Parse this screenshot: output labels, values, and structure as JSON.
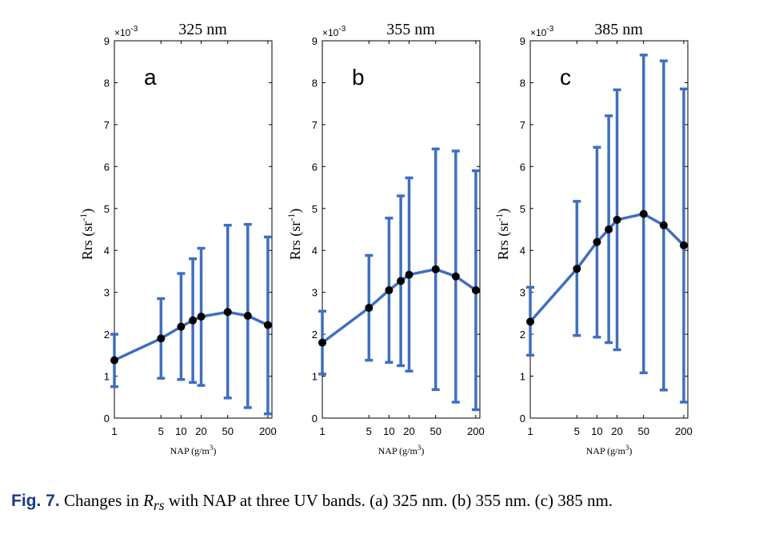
{
  "chart_data": [
    {
      "type": "line",
      "panel_letter": "a",
      "title": "325 nm",
      "exponent_label": "×10-3",
      "xlabel": "NAP (g/m3)",
      "ylabel": "Rrs (sr-1)",
      "xscale": "log",
      "xlim": [
        1,
        230
      ],
      "ylim": [
        0,
        9
      ],
      "x_ticks": [
        1,
        5,
        10,
        20,
        50,
        200
      ],
      "y_ticks": [
        0,
        1,
        2,
        3,
        4,
        5,
        6,
        7,
        8,
        9
      ],
      "x": [
        1,
        5,
        10,
        15,
        20,
        50,
        100,
        200
      ],
      "y": [
        1.38,
        1.9,
        2.18,
        2.33,
        2.42,
        2.53,
        2.44,
        2.22
      ],
      "error_low": [
        0.75,
        0.95,
        0.92,
        0.85,
        0.78,
        0.48,
        0.25,
        0.1
      ],
      "error_high": [
        2.0,
        2.85,
        3.45,
        3.8,
        4.05,
        4.6,
        4.62,
        4.32
      ]
    },
    {
      "type": "line",
      "panel_letter": "b",
      "title": "355 nm",
      "exponent_label": "×10-3",
      "xlabel": "NAP (g/m3)",
      "ylabel": "Rrs (sr-1)",
      "xscale": "log",
      "xlim": [
        1,
        230
      ],
      "ylim": [
        0,
        9
      ],
      "x_ticks": [
        1,
        5,
        10,
        20,
        50,
        200
      ],
      "y_ticks": [
        0,
        1,
        2,
        3,
        4,
        5,
        6,
        7,
        8,
        9
      ],
      "x": [
        1,
        5,
        10,
        15,
        20,
        50,
        100,
        200
      ],
      "y": [
        1.8,
        2.63,
        3.05,
        3.27,
        3.42,
        3.55,
        3.38,
        3.05
      ],
      "error_low": [
        1.05,
        1.38,
        1.33,
        1.25,
        1.12,
        0.68,
        0.38,
        0.2
      ],
      "error_high": [
        2.55,
        3.88,
        4.77,
        5.3,
        5.73,
        6.42,
        6.37,
        5.9
      ]
    },
    {
      "type": "line",
      "panel_letter": "c",
      "title": "385 nm",
      "exponent_label": "×10-3",
      "xlabel": "NAP (g/m3)",
      "ylabel": "Rrs (sr-1)",
      "xscale": "log",
      "xlim": [
        1,
        230
      ],
      "ylim": [
        0,
        9
      ],
      "x_ticks": [
        1,
        5,
        10,
        20,
        50,
        200
      ],
      "y_ticks": [
        0,
        1,
        2,
        3,
        4,
        5,
        6,
        7,
        8,
        9
      ],
      "x": [
        1,
        5,
        10,
        15,
        20,
        50,
        100,
        200
      ],
      "y": [
        2.3,
        3.56,
        4.2,
        4.5,
        4.73,
        4.87,
        4.6,
        4.12
      ],
      "error_low": [
        1.5,
        1.97,
        1.93,
        1.8,
        1.63,
        1.08,
        0.67,
        0.38
      ],
      "error_high": [
        3.12,
        5.17,
        6.46,
        7.21,
        7.83,
        8.66,
        8.52,
        7.85
      ]
    }
  ],
  "colors": {
    "series": "#3f6fc0",
    "marker": "#000000",
    "caption_label": "#1a3a8a"
  },
  "caption": {
    "label": "Fig. 7.",
    "text_before": "Changes in",
    "symbol_main": "R",
    "symbol_sub": "rs",
    "text_after": "with NAP at three UV bands. (a) 325 nm. (b) 355 nm. (c) 385 nm."
  }
}
